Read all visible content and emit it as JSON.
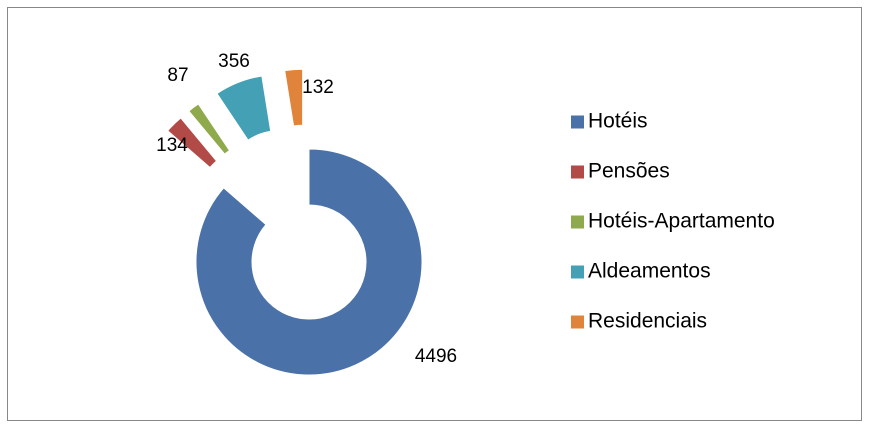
{
  "chart_data": {
    "type": "doughnut",
    "categories": [
      "Hotéis",
      "Pensões",
      "Hotéis-Apartamento",
      "Aldeamentos",
      "Residenciais"
    ],
    "values": [
      4496,
      134,
      87,
      356,
      132
    ],
    "colors": [
      "#4a72a8",
      "#b24a47",
      "#8faa4c",
      "#43a0b5",
      "#e0843c"
    ],
    "legend": "right"
  }
}
